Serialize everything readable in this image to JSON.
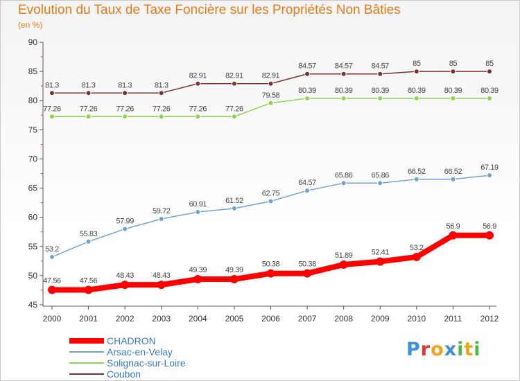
{
  "title": "Evolution du Taux de Taxe Foncière sur les Propriétés Non Bâties",
  "unit": "(en %)",
  "logo": {
    "letters": [
      "P",
      "r",
      "o",
      "x",
      "i",
      "t",
      "i"
    ],
    "colors": [
      "#3d8fd6",
      "#e8332c",
      "#f3a31b",
      "#3d8fd6",
      "#4bb848",
      "#f3a31b",
      "#4bb848"
    ]
  },
  "chart_data": {
    "type": "line",
    "title": "Evolution du Taux de Taxe Foncière sur les Propriétés Non Bâties",
    "ylabel": "(en %)",
    "xlabel": "",
    "ylim": [
      45,
      90
    ],
    "yticks": [
      45,
      50,
      55,
      60,
      65,
      70,
      75,
      80,
      85,
      90
    ],
    "grid": false,
    "legend": "bottom-left",
    "x": [
      "2000",
      "2001",
      "2002",
      "2003",
      "2004",
      "2005",
      "2006",
      "2007",
      "2008",
      "2009",
      "2010",
      "2011",
      "2012"
    ],
    "series": [
      {
        "name": "CHADRON",
        "color": "#ff0000",
        "emphasis": true,
        "values": [
          47.56,
          47.56,
          48.43,
          48.43,
          49.39,
          49.39,
          50.38,
          50.38,
          51.89,
          52.41,
          53.2,
          56.9,
          56.9
        ]
      },
      {
        "name": "Arsac-en-Velay",
        "color": "#6fa2d3",
        "values": [
          53.2,
          55.83,
          57.99,
          59.72,
          60.91,
          61.52,
          62.75,
          64.57,
          65.86,
          65.86,
          66.52,
          66.52,
          67.19
        ]
      },
      {
        "name": "Solignac-sur-Loire",
        "color": "#8fd34a",
        "values": [
          77.26,
          77.26,
          77.26,
          77.26,
          77.26,
          77.26,
          79.58,
          80.39,
          80.39,
          80.39,
          80.39,
          80.39,
          80.39
        ]
      },
      {
        "name": "Coubon",
        "color": "#7b3332",
        "values": [
          81.3,
          81.3,
          81.3,
          81.3,
          82.91,
          82.91,
          82.91,
          84.57,
          84.57,
          84.57,
          85,
          85,
          85
        ]
      }
    ]
  }
}
